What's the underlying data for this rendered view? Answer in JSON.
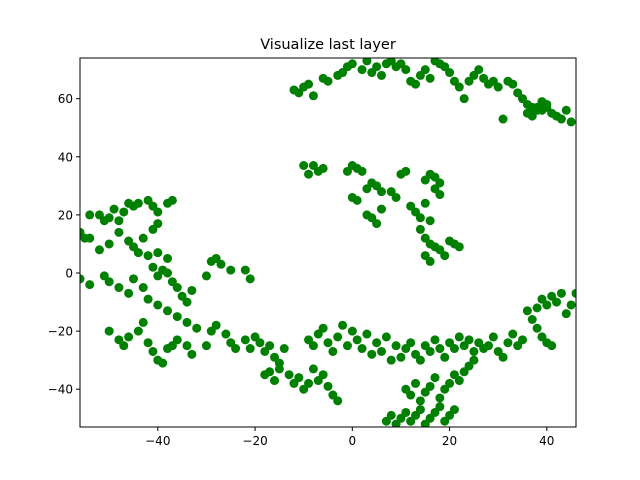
{
  "chart_data": {
    "type": "scatter",
    "title": "Visualize last layer",
    "xlabel": "",
    "ylabel": "",
    "xlim": [
      -56,
      46
    ],
    "ylim": [
      -53,
      74
    ],
    "xticks": [
      -40,
      -20,
      0,
      20,
      40
    ],
    "yticks": [
      -40,
      -20,
      0,
      20,
      40,
      60
    ],
    "grid": false,
    "point_color": "#008000",
    "points": [
      [
        -56,
        14
      ],
      [
        -55,
        12
      ],
      [
        -54,
        20
      ],
      [
        -52,
        20
      ],
      [
        -51,
        18
      ],
      [
        -50,
        19
      ],
      [
        -49,
        22
      ],
      [
        -48,
        18
      ],
      [
        -47,
        21
      ],
      [
        -46,
        24
      ],
      [
        -45,
        23
      ],
      [
        -44,
        24
      ],
      [
        -42,
        25
      ],
      [
        -41,
        23
      ],
      [
        -40,
        21
      ],
      [
        -54,
        12
      ],
      [
        -52,
        8
      ],
      [
        -50,
        10
      ],
      [
        -48,
        14
      ],
      [
        -46,
        11
      ],
      [
        -45,
        9
      ],
      [
        -44,
        7
      ],
      [
        -42,
        6
      ],
      [
        -40,
        7
      ],
      [
        -38,
        5
      ],
      [
        -41,
        15
      ],
      [
        -40,
        17
      ],
      [
        -38,
        24
      ],
      [
        -37,
        25
      ],
      [
        -43,
        12
      ],
      [
        -56,
        -2
      ],
      [
        -54,
        -4
      ],
      [
        -51,
        -1
      ],
      [
        -50,
        -3
      ],
      [
        -48,
        -5
      ],
      [
        -46,
        -7
      ],
      [
        -45,
        -2
      ],
      [
        -43,
        -5
      ],
      [
        -41,
        2
      ],
      [
        -40,
        -1
      ],
      [
        -39,
        1
      ],
      [
        -38,
        0
      ],
      [
        -37,
        -3
      ],
      [
        -36,
        -5
      ],
      [
        -35,
        -8
      ],
      [
        -42,
        -9
      ],
      [
        -40,
        -11
      ],
      [
        -38,
        -13
      ],
      [
        -36,
        -15
      ],
      [
        -34,
        -17
      ],
      [
        -32,
        -19
      ],
      [
        -34,
        -10
      ],
      [
        -33,
        -6
      ],
      [
        -30,
        -1
      ],
      [
        -29,
        4
      ],
      [
        -28,
        5
      ],
      [
        -27,
        3
      ],
      [
        -25,
        1
      ],
      [
        -22,
        1
      ],
      [
        -21,
        -2
      ],
      [
        -50,
        -20
      ],
      [
        -48,
        -23
      ],
      [
        -47,
        -25
      ],
      [
        -46,
        -22
      ],
      [
        -44,
        -20
      ],
      [
        -43,
        -17
      ],
      [
        -42,
        -24
      ],
      [
        -41,
        -27
      ],
      [
        -40,
        -30
      ],
      [
        -39,
        -31
      ],
      [
        -38,
        -26
      ],
      [
        -37,
        -25
      ],
      [
        -36,
        -23
      ],
      [
        -34,
        -25
      ],
      [
        -33,
        -28
      ],
      [
        -30,
        -25
      ],
      [
        -29,
        -20
      ],
      [
        -28,
        -18
      ],
      [
        -26,
        -21
      ],
      [
        -25,
        -24
      ],
      [
        -24,
        -26
      ],
      [
        -22,
        -23
      ],
      [
        -21,
        -26
      ],
      [
        -20,
        -22
      ],
      [
        -19,
        -24
      ],
      [
        -18,
        -27
      ],
      [
        -17,
        -25
      ],
      [
        -16,
        -29
      ],
      [
        -15,
        -31
      ],
      [
        -14,
        -26
      ],
      [
        -18,
        -35
      ],
      [
        -17,
        -34
      ],
      [
        -16,
        -37
      ],
      [
        -15,
        -33
      ],
      [
        -13,
        -35
      ],
      [
        -12,
        -38
      ],
      [
        -11,
        -36
      ],
      [
        -10,
        -40
      ],
      [
        -9,
        -38
      ],
      [
        -8,
        -33
      ],
      [
        -7,
        -37
      ],
      [
        -6,
        -35
      ],
      [
        -5,
        -39
      ],
      [
        -4,
        -42
      ],
      [
        -3,
        -44
      ],
      [
        -9,
        -23
      ],
      [
        -8,
        -25
      ],
      [
        -7,
        -21
      ],
      [
        -6,
        -19
      ],
      [
        -5,
        -24
      ],
      [
        -4,
        -27
      ],
      [
        -3,
        -22
      ],
      [
        -2,
        -18
      ],
      [
        -1,
        -25
      ],
      [
        0,
        -20
      ],
      [
        1,
        -23
      ],
      [
        2,
        -26
      ],
      [
        3,
        -21
      ],
      [
        4,
        -28
      ],
      [
        5,
        -24
      ],
      [
        6,
        -27
      ],
      [
        7,
        -22
      ],
      [
        8,
        -30
      ],
      [
        9,
        -25
      ],
      [
        10,
        -29
      ],
      [
        11,
        -26
      ],
      [
        12,
        -24
      ],
      [
        13,
        -28
      ],
      [
        14,
        -30
      ],
      [
        15,
        -25
      ],
      [
        16,
        -27
      ],
      [
        17,
        -23
      ],
      [
        18,
        -26
      ],
      [
        19,
        -29
      ],
      [
        20,
        -24
      ],
      [
        21,
        -26
      ],
      [
        22,
        -22
      ],
      [
        23,
        -25
      ],
      [
        24,
        -23
      ],
      [
        25,
        -27
      ],
      [
        26,
        -24
      ],
      [
        27,
        -26
      ],
      [
        28,
        -25
      ],
      [
        29,
        -22
      ],
      [
        30,
        -27
      ],
      [
        31,
        -29
      ],
      [
        32,
        -24
      ],
      [
        33,
        -21
      ],
      [
        34,
        -25
      ],
      [
        35,
        -23
      ],
      [
        7,
        -51
      ],
      [
        8,
        -49
      ],
      [
        9,
        -52
      ],
      [
        10,
        -50
      ],
      [
        11,
        -48
      ],
      [
        12,
        -51
      ],
      [
        13,
        -49
      ],
      [
        14,
        -47
      ],
      [
        15,
        -52
      ],
      [
        16,
        -50
      ],
      [
        17,
        -48
      ],
      [
        18,
        -46
      ],
      [
        19,
        -51
      ],
      [
        20,
        -49
      ],
      [
        21,
        -47
      ],
      [
        11,
        -40
      ],
      [
        12,
        -42
      ],
      [
        13,
        -38
      ],
      [
        14,
        -44
      ],
      [
        15,
        -41
      ],
      [
        16,
        -39
      ],
      [
        17,
        -36
      ],
      [
        18,
        -43
      ],
      [
        19,
        -40
      ],
      [
        20,
        -38
      ],
      [
        21,
        -35
      ],
      [
        22,
        -37
      ],
      [
        23,
        -34
      ],
      [
        24,
        -32
      ],
      [
        25,
        -30
      ],
      [
        36,
        -13
      ],
      [
        37,
        -16
      ],
      [
        38,
        -12
      ],
      [
        39,
        -9
      ],
      [
        40,
        -11
      ],
      [
        41,
        -8
      ],
      [
        42,
        -10
      ],
      [
        43,
        -7
      ],
      [
        44,
        -14
      ],
      [
        45,
        -11
      ],
      [
        46,
        -7
      ],
      [
        38,
        -19
      ],
      [
        39,
        -22
      ],
      [
        40,
        -24
      ],
      [
        41,
        -25
      ],
      [
        -8,
        37
      ],
      [
        -7,
        35
      ],
      [
        -9,
        34
      ],
      [
        -6,
        36
      ],
      [
        -10,
        37
      ],
      [
        0,
        37
      ],
      [
        1,
        36
      ],
      [
        2,
        35
      ],
      [
        -1,
        35
      ],
      [
        0,
        26
      ],
      [
        1,
        25
      ],
      [
        3,
        29
      ],
      [
        4,
        31
      ],
      [
        5,
        30
      ],
      [
        6,
        28
      ],
      [
        3,
        20
      ],
      [
        4,
        19
      ],
      [
        5,
        17
      ],
      [
        6,
        22
      ],
      [
        8,
        28
      ],
      [
        9,
        26
      ],
      [
        10,
        34
      ],
      [
        11,
        35
      ],
      [
        12,
        23
      ],
      [
        13,
        21
      ],
      [
        14,
        19
      ],
      [
        15,
        24
      ],
      [
        16,
        18
      ],
      [
        17,
        33
      ],
      [
        18,
        31
      ],
      [
        15,
        32
      ],
      [
        16,
        34
      ],
      [
        17,
        29
      ],
      [
        18,
        27
      ],
      [
        14,
        15
      ],
      [
        15,
        12
      ],
      [
        16,
        10
      ],
      [
        17,
        9
      ],
      [
        18,
        8
      ],
      [
        19,
        6
      ],
      [
        20,
        11
      ],
      [
        21,
        10
      ],
      [
        22,
        9
      ],
      [
        15,
        6
      ],
      [
        16,
        4
      ],
      [
        -12,
        63
      ],
      [
        -11,
        62
      ],
      [
        -10,
        64
      ],
      [
        -9,
        65
      ],
      [
        -8,
        61
      ],
      [
        -6,
        67
      ],
      [
        -5,
        66
      ],
      [
        -3,
        68
      ],
      [
        -2,
        69
      ],
      [
        -1,
        71
      ],
      [
        0,
        72
      ],
      [
        2,
        70
      ],
      [
        3,
        73
      ],
      [
        4,
        69
      ],
      [
        5,
        71
      ],
      [
        6,
        68
      ],
      [
        7,
        72
      ],
      [
        8,
        73
      ],
      [
        9,
        71
      ],
      [
        10,
        72
      ],
      [
        11,
        70
      ],
      [
        12,
        66
      ],
      [
        13,
        65
      ],
      [
        14,
        68
      ],
      [
        15,
        70
      ],
      [
        16,
        67
      ],
      [
        17,
        73
      ],
      [
        18,
        72
      ],
      [
        19,
        71
      ],
      [
        20,
        69
      ],
      [
        21,
        66
      ],
      [
        22,
        64
      ],
      [
        23,
        60
      ],
      [
        24,
        66
      ],
      [
        25,
        68
      ],
      [
        26,
        70
      ],
      [
        27,
        67
      ],
      [
        28,
        65
      ],
      [
        29,
        66
      ],
      [
        30,
        64
      ],
      [
        31,
        53
      ],
      [
        32,
        66
      ],
      [
        33,
        65
      ],
      [
        34,
        62
      ],
      [
        35,
        60
      ],
      [
        36,
        58
      ],
      [
        37,
        57
      ],
      [
        38,
        56
      ],
      [
        39,
        59
      ],
      [
        40,
        58
      ],
      [
        41,
        55
      ],
      [
        42,
        54
      ],
      [
        43,
        53
      ],
      [
        44,
        56
      ],
      [
        45,
        52
      ],
      [
        36,
        55
      ],
      [
        37,
        54
      ],
      [
        38,
        57
      ],
      [
        39,
        56
      ],
      [
        40,
        57
      ]
    ]
  }
}
